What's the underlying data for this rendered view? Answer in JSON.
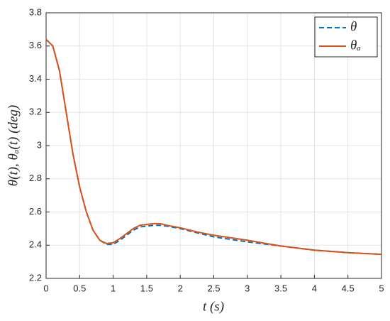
{
  "chart_data": {
    "type": "line",
    "xlabel": "t (s)",
    "ylabel": "θ(t), θₐ(t) (deg)",
    "x": [
      0,
      0.1,
      0.2,
      0.3,
      0.4,
      0.5,
      0.6,
      0.7,
      0.8,
      0.9,
      1.0,
      1.1,
      1.2,
      1.3,
      1.4,
      1.5,
      1.6,
      1.7,
      1.8,
      2.0,
      2.25,
      2.5,
      3.0,
      3.5,
      4.0,
      4.5,
      5.0
    ],
    "series": [
      {
        "name": "θ",
        "color": "#0072bd",
        "dash": true,
        "values": [
          3.64,
          3.6,
          3.45,
          3.2,
          2.95,
          2.75,
          2.6,
          2.49,
          2.43,
          2.405,
          2.405,
          2.43,
          2.46,
          2.49,
          2.51,
          2.515,
          2.52,
          2.52,
          2.515,
          2.5,
          2.475,
          2.45,
          2.42,
          2.395,
          2.37,
          2.355,
          2.345
        ]
      },
      {
        "name": "θₐ",
        "color": "#d95319",
        "dash": false,
        "values": [
          3.64,
          3.6,
          3.45,
          3.2,
          2.95,
          2.75,
          2.6,
          2.49,
          2.43,
          2.41,
          2.415,
          2.44,
          2.47,
          2.5,
          2.52,
          2.525,
          2.53,
          2.53,
          2.52,
          2.505,
          2.48,
          2.46,
          2.43,
          2.395,
          2.37,
          2.355,
          2.345
        ]
      }
    ],
    "xlim": [
      0,
      5
    ],
    "xticks": [
      0,
      0.5,
      1,
      1.5,
      2,
      2.5,
      3,
      3.5,
      4,
      4.5,
      5
    ],
    "ylim": [
      2.2,
      3.8
    ],
    "yticks": [
      2.2,
      2.4,
      2.6,
      2.8,
      3,
      3.2,
      3.4,
      3.6,
      3.8
    ],
    "grid": true,
    "legend": "upper-right"
  }
}
